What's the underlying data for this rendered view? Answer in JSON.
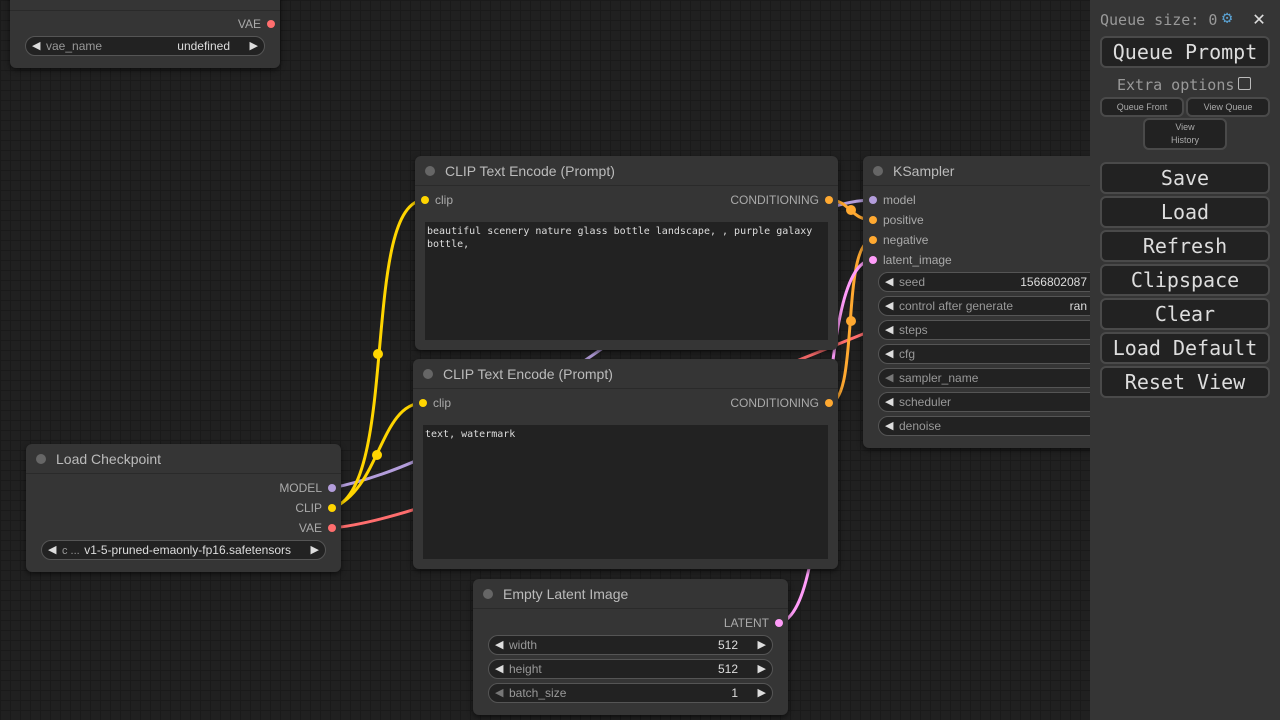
{
  "nodes": {
    "vae_loader": {
      "output": "VAE",
      "widget": {
        "label": "vae_name",
        "value": "undefined"
      }
    },
    "clip_pos": {
      "title": "CLIP Text Encode (Prompt)",
      "input": "clip",
      "output": "CONDITIONING",
      "text": "beautiful scenery nature glass bottle landscape, , purple galaxy bottle,"
    },
    "clip_neg": {
      "title": "CLIP Text Encode (Prompt)",
      "input": "clip",
      "output": "CONDITIONING",
      "text": "text, watermark"
    },
    "checkpoint": {
      "title": "Load Checkpoint",
      "outputs": [
        "MODEL",
        "CLIP",
        "VAE"
      ],
      "widget": {
        "label": "c ...",
        "value": "v1-5-pruned-emaonly-fp16.safetensors"
      }
    },
    "latent": {
      "title": "Empty Latent Image",
      "output": "LATENT",
      "widgets": [
        {
          "label": "width",
          "value": "512"
        },
        {
          "label": "height",
          "value": "512"
        },
        {
          "label": "batch_size",
          "value": "1"
        }
      ]
    },
    "ksampler": {
      "title": "KSampler",
      "inputs": [
        "model",
        "positive",
        "negative",
        "latent_image"
      ],
      "widgets": [
        {
          "label": "seed",
          "value": "1566802087"
        },
        {
          "label": "control after generate",
          "value": "ran"
        },
        {
          "label": "steps",
          "value": ""
        },
        {
          "label": "cfg",
          "value": ""
        },
        {
          "label": "sampler_name",
          "value": ""
        },
        {
          "label": "scheduler",
          "value": ""
        },
        {
          "label": "denoise",
          "value": ""
        }
      ]
    }
  },
  "sidebar": {
    "queue_size": "Queue size: 0",
    "queue_prompt": "Queue Prompt",
    "extra_options": "Extra options",
    "queue_front": "Queue Front",
    "view_queue": "View Queue",
    "view_history": "View History",
    "buttons": [
      "Save",
      "Load",
      "Refresh",
      "Clipspace",
      "Clear",
      "Load Default",
      "Reset View"
    ]
  },
  "colors": {
    "clip": "#ffd500",
    "model": "#b39ddb",
    "vae": "#ff6e6e",
    "conditioning": "#ffa931",
    "latent": "#ff9cf9"
  }
}
